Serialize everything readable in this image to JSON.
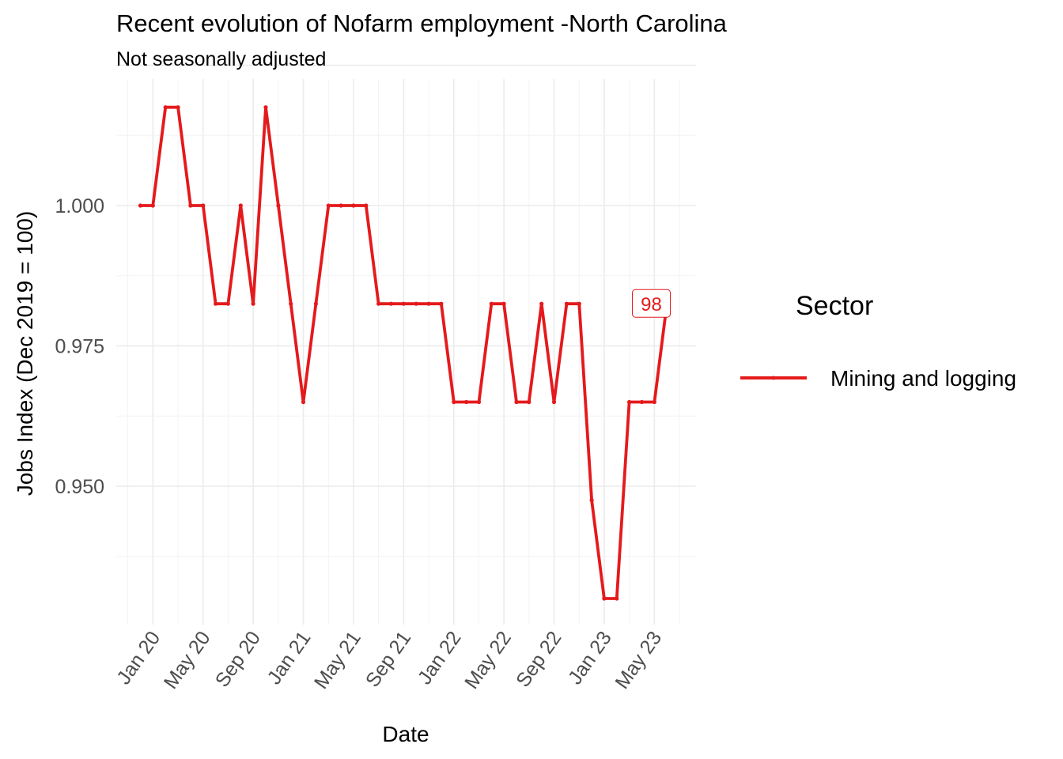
{
  "chart_data": {
    "type": "line",
    "title": "Recent evolution of Nofarm employment -North Carolina",
    "subtitle": "Not seasonally adjusted",
    "xlabel": "Date",
    "ylabel": "Jobs Index (Dec 2019 = 100)",
    "x_ticks": [
      "Jan 20",
      "May 20",
      "Sep 20",
      "Jan 21",
      "May 21",
      "Sep 21",
      "Jan 22",
      "May 22",
      "Sep 22",
      "Jan 23",
      "May 23"
    ],
    "y_ticks": [
      "0.950",
      "0.975",
      "1.000"
    ],
    "ylim": [
      0.9275,
      1.0275
    ],
    "grid": true,
    "legend_position": "right",
    "legend_title": "Sector",
    "series": [
      {
        "name": "Mining and logging",
        "color": "#E41A1C",
        "x": [
          "2019-12",
          "2020-01",
          "2020-02",
          "2020-03",
          "2020-04",
          "2020-05",
          "2020-06",
          "2020-07",
          "2020-08",
          "2020-09",
          "2020-10",
          "2020-11",
          "2020-12",
          "2021-01",
          "2021-02",
          "2021-03",
          "2021-04",
          "2021-05",
          "2021-06",
          "2021-07",
          "2021-08",
          "2021-09",
          "2021-10",
          "2021-11",
          "2021-12",
          "2022-01",
          "2022-02",
          "2022-03",
          "2022-04",
          "2022-05",
          "2022-06",
          "2022-07",
          "2022-08",
          "2022-09",
          "2022-10",
          "2022-11",
          "2022-12",
          "2023-01",
          "2023-02",
          "2023-03",
          "2023-04",
          "2023-05",
          "2023-06"
        ],
        "values": [
          1.0,
          1.0,
          1.0175,
          1.0175,
          1.0,
          1.0,
          0.9825,
          0.9825,
          1.0,
          0.9825,
          1.0175,
          1.0,
          0.9825,
          0.965,
          0.9825,
          1.0,
          1.0,
          1.0,
          1.0,
          0.9825,
          0.9825,
          0.9825,
          0.9825,
          0.9825,
          0.9825,
          0.965,
          0.965,
          0.965,
          0.9825,
          0.9825,
          0.965,
          0.965,
          0.9825,
          0.965,
          0.9825,
          0.9825,
          0.9475,
          0.93,
          0.93,
          0.965,
          0.965,
          0.965,
          0.9825
        ]
      }
    ],
    "annotations": [
      {
        "label": "98",
        "x": "2023-04",
        "y": 0.9825
      }
    ]
  }
}
